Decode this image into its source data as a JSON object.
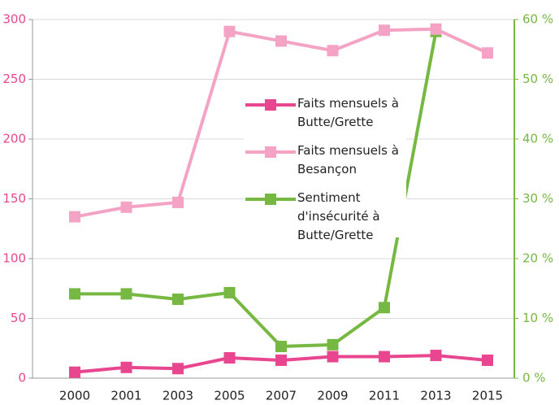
{
  "chart_data": {
    "type": "line",
    "categories": [
      "2000",
      "2001",
      "2003",
      "2005",
      "2007",
      "2009",
      "2011",
      "2013",
      "2015"
    ],
    "series": [
      {
        "name": "Faits mensuels à Butte/Grette",
        "color": "#e8478f",
        "axis": "y",
        "values": [
          5,
          9,
          8,
          17,
          15,
          18,
          18,
          19,
          15
        ]
      },
      {
        "name": "Faits mensuels à Besançon",
        "color": "#f4a3c5",
        "axis": "y",
        "values": [
          135,
          143,
          147,
          290,
          282,
          274,
          291,
          292,
          272
        ]
      },
      {
        "name": "Sentiment d'insécurité à Butte/Grette",
        "color": "#77b843",
        "axis": "y2",
        "values": [
          14.1,
          14.1,
          13.2,
          14.3,
          5.3,
          5.6,
          11.8,
          58,
          null
        ]
      }
    ],
    "ylim": [
      0,
      300
    ],
    "yticks": [
      0,
      50,
      100,
      150,
      200,
      250,
      300
    ],
    "y2lim": [
      0,
      60
    ],
    "y2ticks": [
      {
        "value": 0,
        "label": "0 %"
      },
      {
        "value": 10,
        "label": "10 %"
      },
      {
        "value": 20,
        "label": "20 %"
      },
      {
        "value": 30,
        "label": "30 %"
      },
      {
        "value": 40,
        "label": "40 %"
      },
      {
        "value": 50,
        "label": "50 %"
      },
      {
        "value": 60,
        "label": "60 %"
      }
    ],
    "grid": true
  }
}
